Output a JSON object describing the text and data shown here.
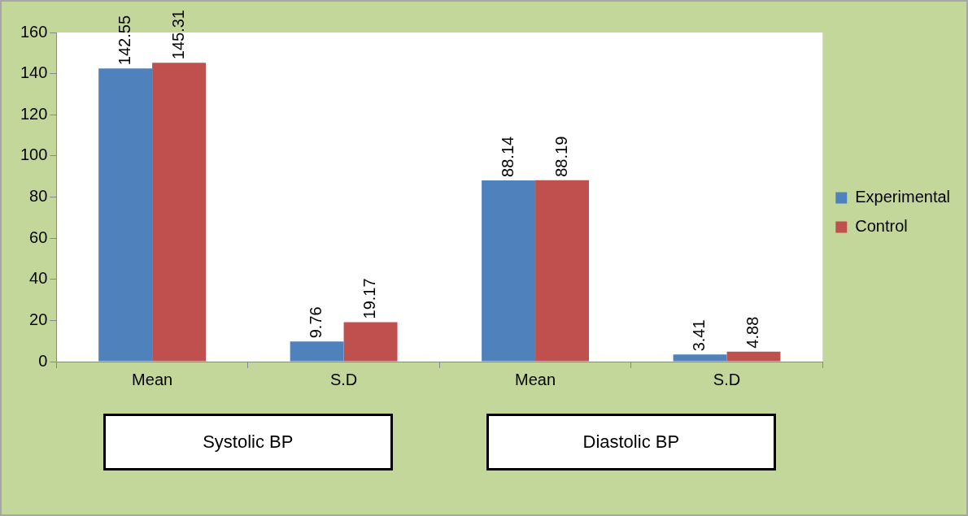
{
  "chart_data": {
    "type": "bar",
    "categories": [
      "Mean",
      "S.D",
      "Mean",
      "S.D"
    ],
    "series": [
      {
        "name": "Experimental",
        "color": "#4f81bd",
        "values": [
          142.55,
          9.76,
          88.14,
          3.41
        ]
      },
      {
        "name": "Control",
        "color": "#c0504d",
        "values": [
          145.31,
          19.17,
          88.19,
          4.88
        ]
      }
    ],
    "ylim": [
      0,
      160
    ],
    "yticks": [
      0,
      20,
      40,
      60,
      80,
      100,
      120,
      140,
      160
    ],
    "grid": false,
    "legend": "right",
    "data_labels": true,
    "annotations": [
      "Systolic BP",
      "Diastolic BP"
    ]
  }
}
